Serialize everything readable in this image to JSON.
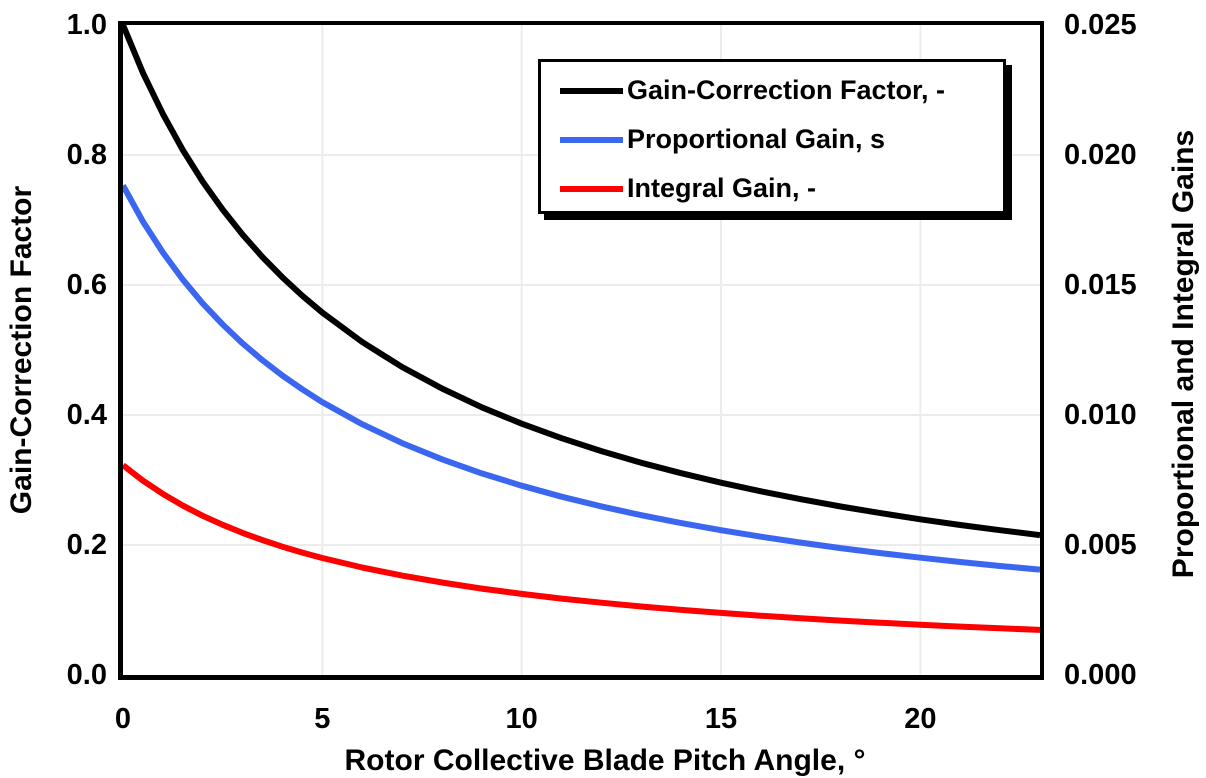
{
  "chart": {
    "left_axis": {
      "title": "Gain-Correction Factor",
      "ticks": [
        "0.0",
        "0.2",
        "0.4",
        "0.6",
        "0.8",
        "1.0"
      ]
    },
    "right_axis": {
      "title": "Proportional and Integral Gains",
      "ticks": [
        "0.000",
        "0.005",
        "0.010",
        "0.015",
        "0.020",
        "0.025"
      ]
    },
    "x_axis": {
      "title": "Rotor Collective Blade Pitch Angle, °",
      "ticks": [
        "0",
        "5",
        "10",
        "15",
        "20"
      ]
    }
  },
  "chart_data": {
    "type": "line",
    "title": "",
    "xlabel": "Rotor Collective Blade Pitch Angle, °",
    "ylabel_left": "Gain-Correction Factor",
    "ylabel_right": "Proportional and Integral Gains",
    "x_range": [
      0,
      23
    ],
    "left_range": [
      0,
      1.0
    ],
    "right_range": [
      0,
      0.025
    ],
    "legend_position": "top-center",
    "grid": {
      "on": true,
      "color": "#ECECEC",
      "x": [
        5,
        10,
        15,
        20
      ],
      "y": [
        0.2,
        0.4,
        0.6,
        0.8
      ]
    },
    "x": [
      0,
      0.5,
      1,
      1.5,
      2,
      2.5,
      3,
      3.5,
      4,
      4.5,
      5,
      6,
      7,
      8,
      9,
      10,
      11,
      12,
      13,
      14,
      15,
      16,
      17,
      18,
      19,
      20,
      21,
      22,
      23
    ],
    "series": [
      {
        "name": "Gain-Correction Factor, -",
        "axis": "left",
        "color": "#000000",
        "values": [
          1.0,
          0.9265,
          0.8631,
          0.8077,
          0.7591,
          0.716,
          0.6775,
          0.6429,
          0.6117,
          0.5834,
          0.5576,
          0.5123,
          0.4738,
          0.4407,
          0.4119,
          0.3866,
          0.3643,
          0.3444,
          0.3265,
          0.3104,
          0.2959,
          0.2826,
          0.2705,
          0.2593,
          0.2491,
          0.2396,
          0.2308,
          0.2227,
          0.2152
        ]
      },
      {
        "name": "Proportional Gain, s",
        "axis": "right",
        "color": "#3B66F0",
        "values": [
          0.018827,
          0.017443,
          0.016249,
          0.015206,
          0.014291,
          0.01348,
          0.012755,
          0.012104,
          0.011516,
          0.010983,
          0.010498,
          0.009645,
          0.00892,
          0.008297,
          0.007755,
          0.007279,
          0.006859,
          0.006484,
          0.006147,
          0.005844,
          0.005571,
          0.005321,
          0.005093,
          0.004882,
          0.00469,
          0.004511,
          0.004345,
          0.004193,
          0.004052
        ]
      },
      {
        "name": "Integral Gain, -",
        "axis": "right",
        "color": "#FF0000",
        "values": [
          0.008069,
          0.007476,
          0.006964,
          0.006517,
          0.006125,
          0.005777,
          0.005467,
          0.005188,
          0.004936,
          0.004707,
          0.004499,
          0.004134,
          0.003823,
          0.003556,
          0.003323,
          0.003119,
          0.002939,
          0.002779,
          0.002634,
          0.002504,
          0.002387,
          0.00228,
          0.002183,
          0.002092,
          0.00201,
          0.001933,
          0.001862,
          0.001797,
          0.001736
        ]
      }
    ]
  }
}
